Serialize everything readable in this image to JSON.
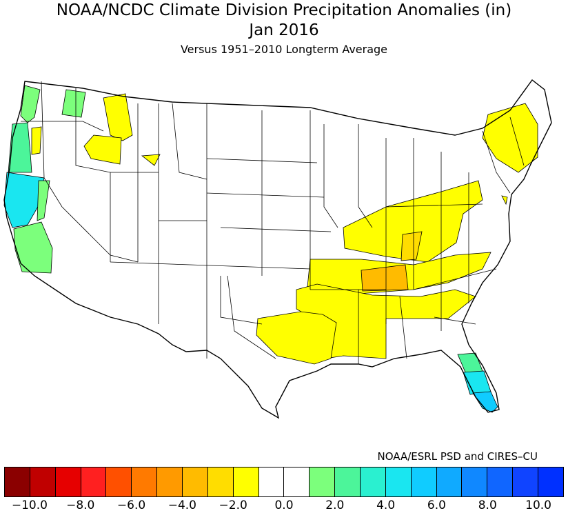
{
  "header": {
    "title": "NOAA/NCDC Climate Division Precipitation Anomalies (in)",
    "period": "Jan 2016",
    "subtitle": "Versus 1951–2010 Longterm Average"
  },
  "credit": "NOAA/ESRL PSD and CIRES–CU",
  "legend": {
    "colors": [
      "#8b0000",
      "#c00000",
      "#e60000",
      "#ff2020",
      "#ff5000",
      "#ff7a00",
      "#ff9a00",
      "#ffbb00",
      "#ffdd00",
      "#ffff00",
      "#ffffff",
      "#ffffff",
      "#7cff7c",
      "#4cf59a",
      "#2af0d0",
      "#1ae6f0",
      "#10ccff",
      "#10aaff",
      "#1088ff",
      "#1066ff",
      "#1044ff",
      "#0030ff"
    ],
    "tick_labels": [
      "−10.0",
      "−8.0",
      "−6.0",
      "−4.0",
      "−2.0",
      "0.0",
      "2.0",
      "4.0",
      "6.0",
      "8.0",
      "10.0"
    ]
  },
  "map_colors": {
    "dry_mild": "#ffff00",
    "dry_moderate": "#ffdd00",
    "dry_strong": "#ffbb00",
    "wet_light": "#7cff7c",
    "wet_moderate": "#4cf59a",
    "wet_strong": "#1ae6f0",
    "wet_heavy": "#10ccff"
  }
}
